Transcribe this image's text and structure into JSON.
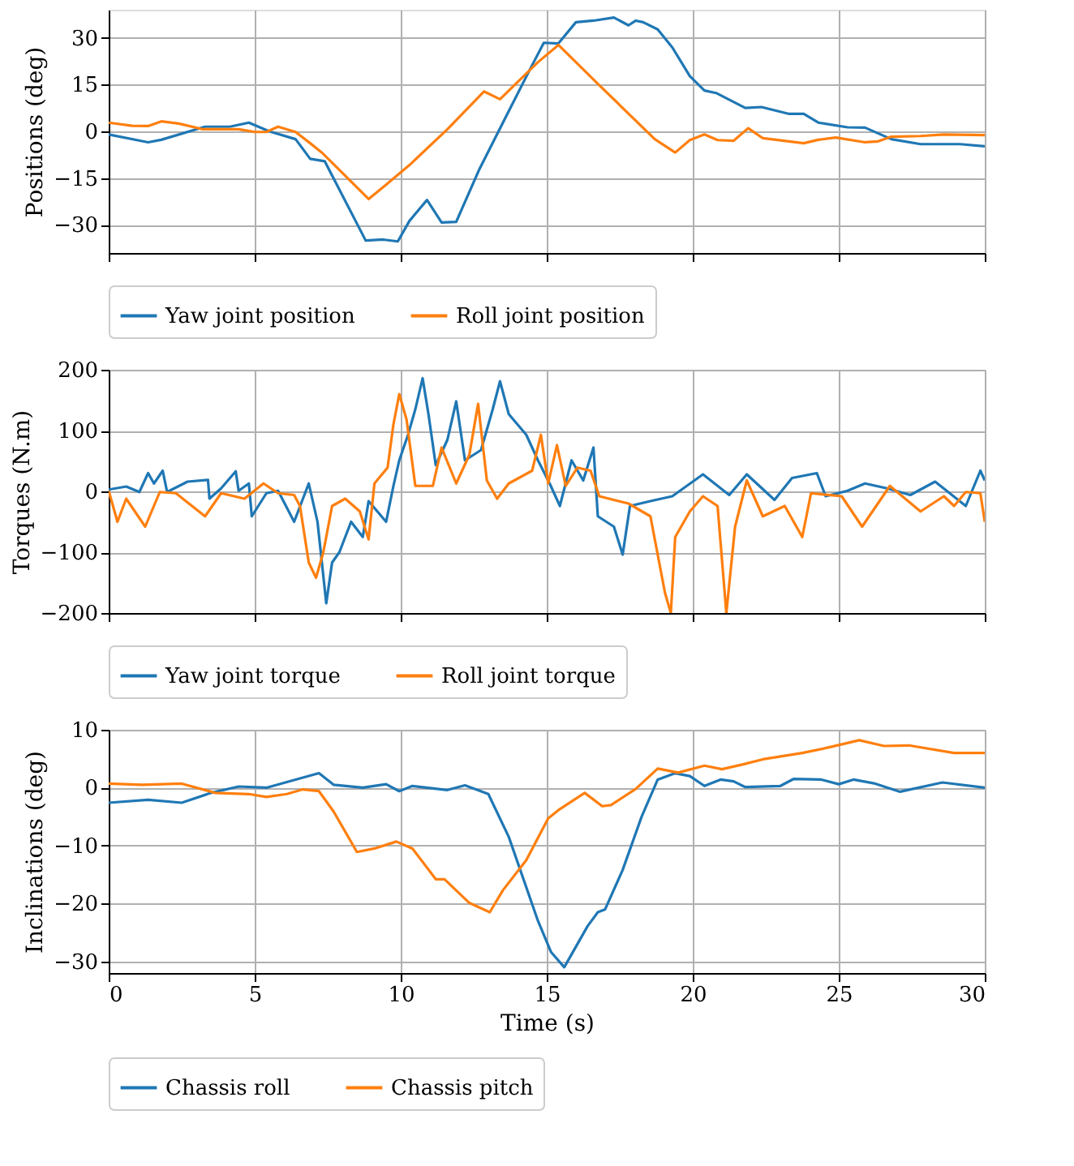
{
  "chart_data": [
    {
      "type": "line",
      "ylabel": "Positions (deg)",
      "xlim": [
        0,
        30
      ],
      "xticks": [
        0,
        5,
        10,
        15,
        20,
        25,
        30
      ],
      "ylim": [
        -39,
        39
      ],
      "yticks": [
        -30,
        -15,
        0,
        15,
        30
      ],
      "grid": true,
      "legend": "bottom",
      "tick_labels": "y",
      "series": [
        {
          "name": "Yaw joint position",
          "color": "#1f77b4",
          "x": [
            0,
            1.35,
            1.8,
            3.3,
            4.15,
            4.8,
            5.5,
            6.4,
            6.9,
            7.4,
            8.8,
            9.4,
            9.9,
            10.3,
            10.9,
            11.4,
            11.9,
            12.7,
            13.5,
            14.4,
            14.9,
            15.4,
            16.0,
            16.6,
            17.3,
            17.8,
            18.05,
            18.3,
            18.8,
            19.3,
            19.9,
            20.4,
            20.8,
            21.8,
            22.35,
            23.3,
            23.8,
            24.3,
            25.3,
            25.9,
            26.8,
            27.8,
            29.15,
            30
          ],
          "values": [
            -1,
            -3.5,
            -2.7,
            1.5,
            1.5,
            2.8,
            0,
            -2.5,
            -8.8,
            -9.6,
            -35,
            -34.7,
            -35.3,
            -28.7,
            -22,
            -29.2,
            -29,
            -12,
            2.8,
            19.4,
            28.4,
            28.2,
            35,
            35.5,
            36.5,
            34,
            35.5,
            35,
            32.7,
            26.9,
            17.7,
            13.1,
            12.3,
            7.5,
            7.8,
            5.6,
            5.6,
            2.8,
            1.3,
            1.2,
            -2.5,
            -4.1,
            -4.1,
            -4.8
          ]
        },
        {
          "name": "Roll joint position",
          "color": "#ff7f0e",
          "x": [
            0,
            0.8,
            1.35,
            1.8,
            2.4,
            3.2,
            4.45,
            5.0,
            5.4,
            5.8,
            6.4,
            6.9,
            7.3,
            8.9,
            9.5,
            10.3,
            11.6,
            12.85,
            13.4,
            14.7,
            15.4,
            16.8,
            18.7,
            19.4,
            19.9,
            20.4,
            20.85,
            21.4,
            21.9,
            22.4,
            23.8,
            24.3,
            24.9,
            25.9,
            26.35,
            26.8,
            27.8,
            28.6,
            30
          ],
          "values": [
            2.8,
            1.8,
            1.7,
            3.2,
            2.5,
            0.7,
            0.7,
            -0.2,
            -0.2,
            1.5,
            -0.2,
            -3.8,
            -6.8,
            -21.7,
            -17.1,
            -10.8,
            0.7,
            12.8,
            10.3,
            22.2,
            27.7,
            14.8,
            -2.5,
            -6.8,
            -2.8,
            -1,
            -2.8,
            -3,
            1,
            -2.2,
            -3.8,
            -2.7,
            -2,
            -3.5,
            -3.2,
            -1.7,
            -1.5,
            -1,
            -1.2
          ]
        }
      ]
    },
    {
      "type": "line",
      "ylabel": "Torques (N.m)",
      "xlim": [
        0,
        30
      ],
      "xticks": [
        0,
        5,
        10,
        15,
        20,
        25,
        30
      ],
      "ylim": [
        -200,
        200
      ],
      "yticks": [
        -200,
        -100,
        0,
        100,
        200
      ],
      "grid": true,
      "legend": "bottom",
      "tick_labels": "y",
      "series": [
        {
          "name": "Yaw joint torque",
          "color": "#1f77b4",
          "x": [
            0,
            0.6,
            1.05,
            1.35,
            1.55,
            1.85,
            2.0,
            2.7,
            3.4,
            3.45,
            3.85,
            4.35,
            4.45,
            4.8,
            4.9,
            5.4,
            5.8,
            6.35,
            6.85,
            7.15,
            7.45,
            7.65,
            7.9,
            8.3,
            8.7,
            8.9,
            9.5,
            9.75,
            9.95,
            10.25,
            10.5,
            10.75,
            10.95,
            11.2,
            11.6,
            11.9,
            12.2,
            12.75,
            13.15,
            13.4,
            13.7,
            14.3,
            14.7,
            15.1,
            15.45,
            15.85,
            16.25,
            16.6,
            16.75,
            17.3,
            17.6,
            17.85,
            18.55,
            19.3,
            20.35,
            21.25,
            21.85,
            22.8,
            23.4,
            24.25,
            24.55,
            25.3,
            25.9,
            26.65,
            27.45,
            28.3,
            29.35,
            29.85,
            30
          ],
          "values": [
            3,
            8,
            -1,
            30,
            13,
            34,
            -1,
            16,
            19,
            -12,
            5,
            33,
            1,
            13,
            -41,
            -3,
            1,
            -50,
            13,
            -50,
            -184,
            -117,
            -100,
            -50,
            -75,
            -16,
            -50,
            9,
            51,
            93,
            135,
            186,
            127,
            43,
            85,
            148,
            51,
            68,
            135,
            181,
            127,
            93,
            51,
            13,
            -24,
            51,
            18,
            72,
            -41,
            -58,
            -104,
            -24,
            -16,
            -8,
            28,
            -6,
            28,
            -14,
            22,
            30,
            -8,
            1,
            13,
            5,
            -6,
            16,
            -24,
            34,
            18
          ]
        },
        {
          "name": "Roll joint torque",
          "color": "#ff7f0e",
          "x": [
            0,
            0.3,
            0.6,
            1.25,
            1.75,
            2.3,
            3.3,
            3.85,
            4.65,
            5.3,
            5.8,
            6.35,
            6.55,
            6.85,
            7.1,
            7.35,
            7.65,
            8.1,
            8.6,
            8.9,
            9.1,
            9.55,
            9.75,
            9.95,
            10.2,
            10.5,
            11.1,
            11.4,
            11.9,
            12.35,
            12.65,
            12.95,
            13.3,
            13.7,
            14.5,
            14.8,
            15.05,
            15.35,
            15.65,
            16.05,
            16.5,
            16.8,
            17.8,
            18.55,
            19.05,
            19.25,
            19.4,
            19.9,
            20.35,
            20.85,
            21.15,
            21.45,
            21.85,
            22.4,
            23.15,
            23.75,
            24.05,
            25.1,
            25.8,
            26.75,
            27.8,
            28.6,
            28.95,
            29.35,
            29.85,
            30
          ],
          "values": [
            1,
            -50,
            -12,
            -58,
            -1,
            -3,
            -41,
            -3,
            -12,
            13,
            -3,
            -6,
            -24,
            -117,
            -142,
            -100,
            -24,
            -12,
            -33,
            -79,
            13,
            39,
            110,
            160,
            118,
            9,
            9,
            72,
            13,
            60,
            144,
            18,
            -12,
            13,
            34,
            93,
            13,
            76,
            9,
            39,
            34,
            -8,
            -20,
            -41,
            -167,
            -200,
            -75,
            -33,
            -8,
            -24,
            -200,
            -58,
            18,
            -41,
            -24,
            -75,
            -3,
            -8,
            -58,
            9,
            -33,
            -8,
            -24,
            -1,
            -3,
            -50
          ]
        }
      ]
    },
    {
      "type": "line",
      "xlabel": "Time (s)",
      "ylabel": "Inclinations (deg)",
      "xlim": [
        0,
        30
      ],
      "xticks": [
        0,
        5,
        10,
        15,
        20,
        25,
        30
      ],
      "ylim": [
        -32,
        10
      ],
      "yticks": [
        -30,
        -20,
        -10,
        0,
        10
      ],
      "grid": true,
      "legend": "bottom",
      "series": [
        {
          "name": "Chassis roll",
          "color": "#1f77b4",
          "x": [
            0,
            1.35,
            2.5,
            3.5,
            4.45,
            5.4,
            6.2,
            7.2,
            7.7,
            8.7,
            9.5,
            9.95,
            10.4,
            11.6,
            12.2,
            13.0,
            13.7,
            14.7,
            15.15,
            15.6,
            16.4,
            16.75,
            17.0,
            17.6,
            18.25,
            18.8,
            19.4,
            19.9,
            20.4,
            20.95,
            21.4,
            21.8,
            23.0,
            23.45,
            24.4,
            25.0,
            25.5,
            26.25,
            27.1,
            28.55,
            30
          ],
          "values": [
            -2.6,
            -2.1,
            -2.6,
            -0.9,
            0.2,
            0,
            1.1,
            2.5,
            0.5,
            0,
            0.6,
            -0.6,
            0.3,
            -0.4,
            0.4,
            -1.1,
            -8.5,
            -23,
            -28.4,
            -31,
            -23.9,
            -21.5,
            -21,
            -14.2,
            -5,
            1.4,
            2.5,
            2,
            0.3,
            1.4,
            1.1,
            0.1,
            0.3,
            1.5,
            1.4,
            0.6,
            1.4,
            0.7,
            -0.7,
            0.9,
            0
          ]
        },
        {
          "name": "Chassis pitch",
          "color": "#ff7f0e",
          "x": [
            0,
            1.15,
            2.5,
            3.65,
            4.8,
            5.4,
            6.1,
            6.65,
            7.2,
            7.7,
            8.5,
            9.1,
            9.85,
            10.4,
            11.2,
            11.5,
            12.35,
            13.05,
            13.5,
            14.3,
            15.05,
            15.45,
            16.3,
            16.9,
            17.2,
            18.05,
            18.8,
            19.5,
            20.4,
            21.0,
            21.7,
            22.4,
            23.75,
            24.7,
            25.7,
            26.55,
            27.4,
            28.95,
            30
          ],
          "values": [
            0.7,
            0.5,
            0.7,
            -0.9,
            -1.1,
            -1.6,
            -1.1,
            -0.3,
            -0.6,
            -4.1,
            -11.1,
            -10.5,
            -9.3,
            -10.5,
            -15.8,
            -15.8,
            -19.9,
            -21.5,
            -17.7,
            -12.5,
            -5.3,
            -3.7,
            -0.9,
            -3.2,
            -3,
            -0.2,
            3.3,
            2.6,
            3.8,
            3.2,
            4,
            4.9,
            6,
            7,
            8.2,
            7.2,
            7.3,
            6,
            6
          ]
        }
      ]
    }
  ]
}
